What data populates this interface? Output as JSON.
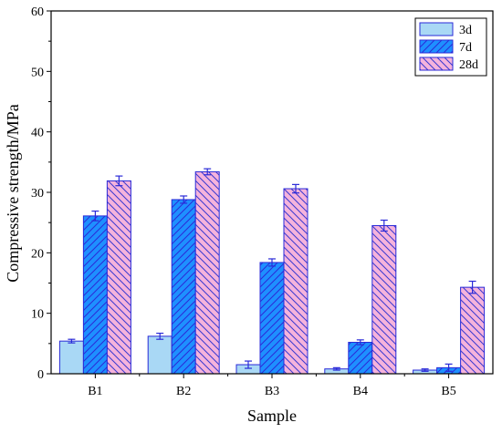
{
  "chart_data": {
    "type": "bar",
    "title": "",
    "xlabel": "Sample",
    "ylabel": "Compressive strength/MPa",
    "ylim": [
      0,
      60
    ],
    "yticks": [
      0,
      10,
      20,
      30,
      40,
      50,
      60
    ],
    "categories": [
      "B1",
      "B2",
      "B3",
      "B4",
      "B5"
    ],
    "legend_position": "top-right",
    "grid": false,
    "series": [
      {
        "name": "3d",
        "values": [
          5.4,
          6.2,
          1.5,
          0.8,
          0.6
        ],
        "errors": [
          0.3,
          0.5,
          0.6,
          0.2,
          0.2
        ],
        "fill": "#a9d8f5",
        "stroke": "#2a2ad8",
        "pattern": "solid"
      },
      {
        "name": "7d",
        "values": [
          26.1,
          28.8,
          18.4,
          5.2,
          1.0
        ],
        "errors": [
          0.8,
          0.6,
          0.6,
          0.4,
          0.6
        ],
        "fill": "#1e90ff",
        "stroke": "#2a2ad8",
        "pattern": "hatch-forward"
      },
      {
        "name": "28d",
        "values": [
          31.9,
          33.4,
          30.6,
          24.5,
          14.3
        ],
        "errors": [
          0.8,
          0.5,
          0.7,
          0.9,
          1.0
        ],
        "fill": "#f5b3dc",
        "stroke": "#2a2ad8",
        "pattern": "hatch-back"
      }
    ]
  }
}
